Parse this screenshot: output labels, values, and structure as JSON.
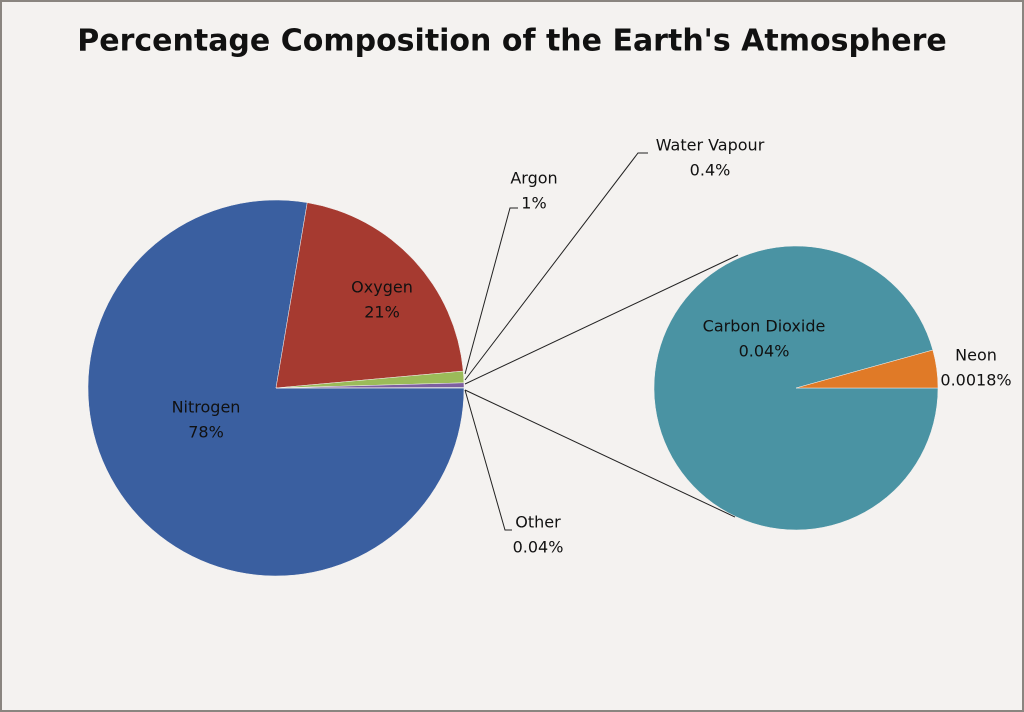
{
  "chart_data": {
    "type": "pie",
    "title": "Percentage Composition of the Earth's Atmosphere",
    "categories": [
      "Nitrogen",
      "Oxygen",
      "Argon",
      "Water Vapour",
      "Other"
    ],
    "values": [
      78,
      21,
      1,
      0.4,
      0.04
    ],
    "value_labels": [
      "78%",
      "21%",
      "1%",
      "0.4%",
      "0.04%"
    ],
    "colors": [
      "#3a5fa0",
      "#a63a30",
      "#9bbb59",
      "#7d5fa0",
      "#4a93a3"
    ],
    "secondary": {
      "categories": [
        "Carbon Dioxide",
        "Neon"
      ],
      "values": [
        0.04,
        0.0018
      ],
      "value_labels": [
        "0.04%",
        "0.0018%"
      ],
      "colors": [
        "#4a93a3",
        "#e07a27"
      ]
    }
  }
}
